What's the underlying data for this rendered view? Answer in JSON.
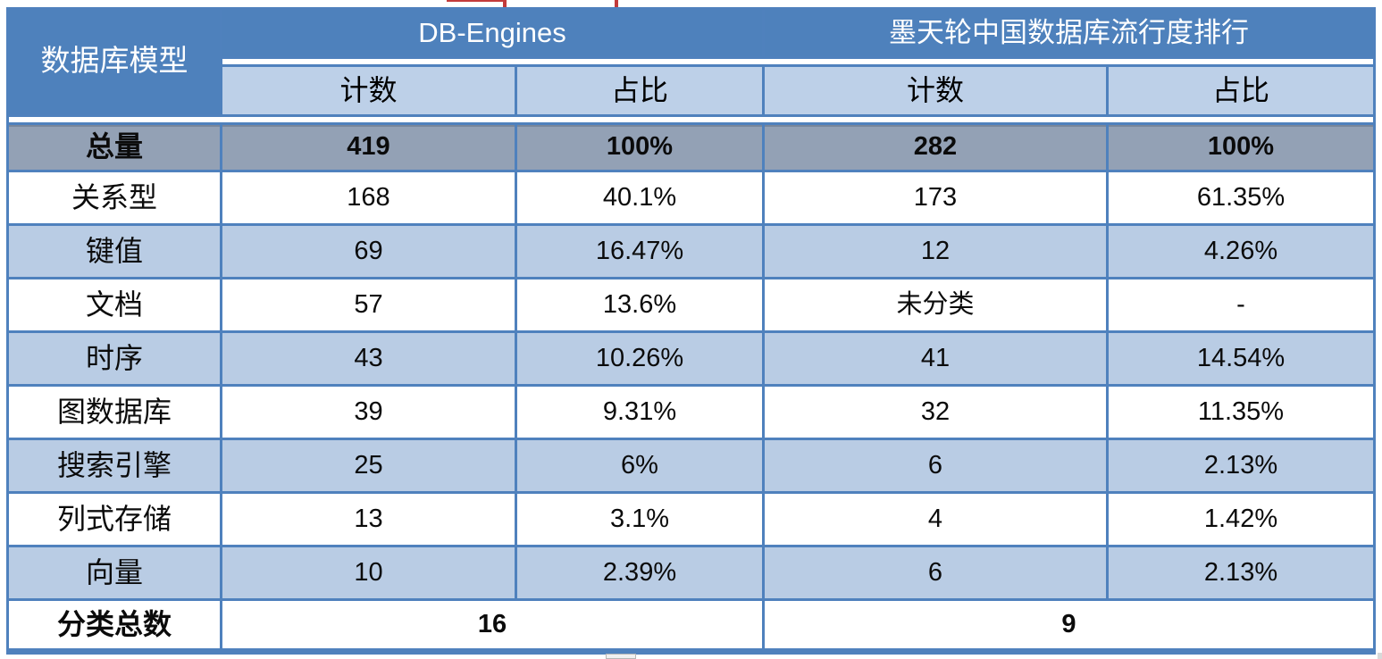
{
  "colors": {
    "header_blue": "#4E81BC",
    "grid_border_blue": "#4F81BD",
    "subheader_light_blue": "#BDD0E8",
    "row_light_blue": "#B9CCE4",
    "total_row_gray": "#93A1B5",
    "artifact_red": "#C23B3B"
  },
  "chart_data": {
    "type": "table",
    "corner_header": "数据库模型",
    "group_headers": [
      "DB-Engines",
      "墨天轮中国数据库流行度排行"
    ],
    "sub_headers": [
      "计数",
      "占比",
      "计数",
      "占比"
    ],
    "rows": [
      {
        "label": "总量",
        "values": [
          "419",
          "100%",
          "282",
          "100%"
        ]
      },
      {
        "label": "关系型",
        "values": [
          "168",
          "40.1%",
          "173",
          "61.35%"
        ]
      },
      {
        "label": "键值",
        "values": [
          "69",
          "16.47%",
          "12",
          "4.26%"
        ]
      },
      {
        "label": "文档",
        "values": [
          "57",
          "13.6%",
          "未分类",
          "-"
        ]
      },
      {
        "label": "时序",
        "values": [
          "43",
          "10.26%",
          "41",
          "14.54%"
        ]
      },
      {
        "label": "图数据库",
        "values": [
          "39",
          "9.31%",
          "32",
          "11.35%"
        ]
      },
      {
        "label": "搜索引擎",
        "values": [
          "25",
          "6%",
          "6",
          "2.13%"
        ]
      },
      {
        "label": "列式存储",
        "values": [
          "13",
          "3.1%",
          "4",
          "1.42%"
        ]
      },
      {
        "label": "向量",
        "values": [
          "10",
          "2.39%",
          "6",
          "2.13%"
        ]
      }
    ],
    "footer": {
      "label": "分类总数",
      "values": [
        "16",
        "9"
      ]
    }
  }
}
